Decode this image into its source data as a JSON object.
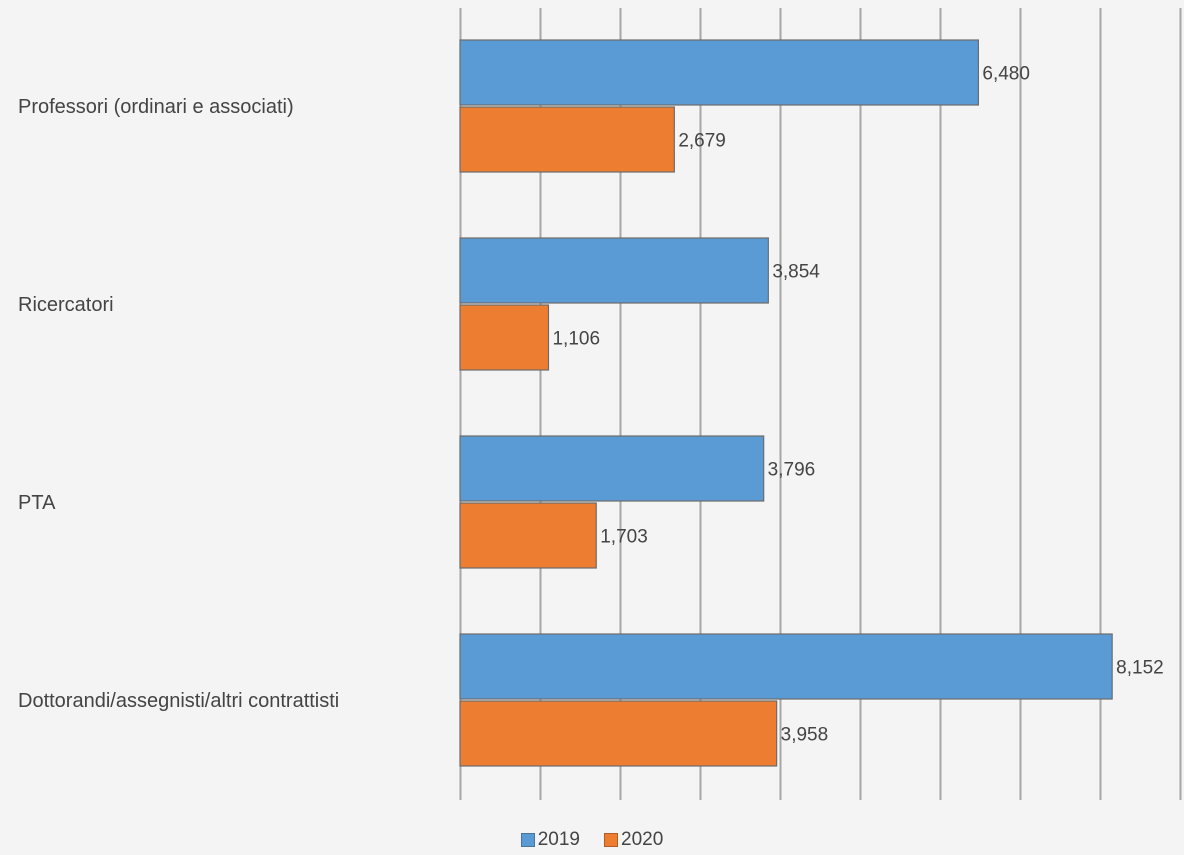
{
  "chart_data": {
    "type": "bar",
    "orientation": "horizontal",
    "categories": [
      "Professori (ordinari e associati)",
      "Ricercatori",
      "PTA",
      "Dottorandi/assegnisti/altri contrattisti"
    ],
    "series": [
      {
        "name": "2019",
        "color": "#5b9bd5",
        "values": [
          6480,
          3854,
          3796,
          8152
        ],
        "labels": [
          "6,480",
          "3,854",
          "3,796",
          "8,152"
        ]
      },
      {
        "name": "2020",
        "color": "#ed7d31",
        "values": [
          2679,
          1106,
          1703,
          3958
        ],
        "labels": [
          "2,679",
          "1,106",
          "1,703",
          "3,958"
        ]
      }
    ],
    "xlim": [
      0,
      9000
    ],
    "x_gridline_step": 1000,
    "grid": true,
    "tick_labels_visible": false,
    "legend_position": "bottom",
    "title": "",
    "xlabel": "",
    "ylabel": ""
  }
}
